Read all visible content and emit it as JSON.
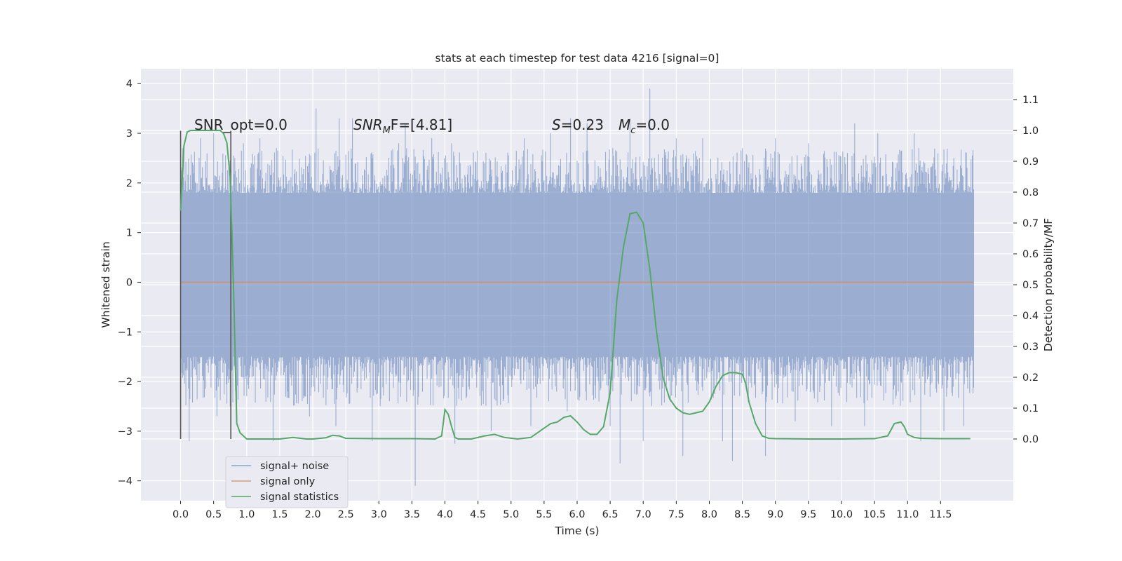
{
  "chart_data": {
    "type": "line",
    "title": "stats at each timestep for test data 4216 [signal=0]",
    "xlabel": "Time (s)",
    "ylabel": "Whitened strain",
    "y2label": "Detection probability/MF",
    "xlim": [
      -0.6,
      12.6
    ],
    "ylim": [
      -4.4,
      4.3
    ],
    "y2lim": [
      -0.2,
      1.2
    ],
    "x_ticks": [
      "0.0",
      "0.5",
      "1.0",
      "1.5",
      "2.0",
      "2.5",
      "3.0",
      "3.5",
      "4.0",
      "4.5",
      "5.0",
      "5.5",
      "6.0",
      "6.5",
      "7.0",
      "7.5",
      "8.0",
      "8.5",
      "9.0",
      "9.5",
      "10.0",
      "10.5",
      "11.0",
      "11.5"
    ],
    "y_ticks": [
      "4",
      "3",
      "2",
      "1",
      "0",
      "−1",
      "−2",
      "−3",
      "−4"
    ],
    "y2_ticks": [
      "1.1",
      "1.0",
      "0.9",
      "0.8",
      "0.7",
      "0.6",
      "0.5",
      "0.4",
      "0.3",
      "0.2",
      "0.1",
      "0.0"
    ],
    "grid": true,
    "legend_position": "lower-left",
    "colors": {
      "noise": "#4c72b0",
      "signal": "#dd8452",
      "stats": "#55a868",
      "background": "#eaeaf2",
      "grid": "#ffffff",
      "vline": "#555555"
    },
    "series": [
      {
        "name": "signal+ noise",
        "color": "#4c72b0",
        "x_range": [
          0.0,
          12.0
        ],
        "bulk_range": [
          -1.5,
          1.8
        ],
        "max_spikes": [
          {
            "x": 0.05,
            "y": 2.4
          },
          {
            "x": 0.3,
            "y": 2.9
          },
          {
            "x": 0.5,
            "y": 3.0
          },
          {
            "x": 0.95,
            "y": 2.8
          },
          {
            "x": 1.2,
            "y": 2.9
          },
          {
            "x": 1.45,
            "y": 2.7
          },
          {
            "x": 2.05,
            "y": 3.5
          },
          {
            "x": 2.4,
            "y": 3.3
          },
          {
            "x": 2.6,
            "y": 3.3
          },
          {
            "x": 2.9,
            "y": 2.5
          },
          {
            "x": 3.3,
            "y": 2.8
          },
          {
            "x": 3.4,
            "y": 3.2
          },
          {
            "x": 3.8,
            "y": 2.9
          },
          {
            "x": 4.1,
            "y": 2.8
          },
          {
            "x": 4.6,
            "y": 2.4
          },
          {
            "x": 5.2,
            "y": 2.9
          },
          {
            "x": 5.6,
            "y": 3.0
          },
          {
            "x": 5.9,
            "y": 3.3
          },
          {
            "x": 6.15,
            "y": 3.2
          },
          {
            "x": 6.8,
            "y": 3.3
          },
          {
            "x": 7.1,
            "y": 3.9
          },
          {
            "x": 7.5,
            "y": 2.9
          },
          {
            "x": 7.9,
            "y": 2.9
          },
          {
            "x": 8.5,
            "y": 2.7
          },
          {
            "x": 9.0,
            "y": 2.9
          },
          {
            "x": 9.5,
            "y": 2.8
          },
          {
            "x": 10.2,
            "y": 3.2
          },
          {
            "x": 10.55,
            "y": 3.0
          },
          {
            "x": 11.1,
            "y": 3.0
          },
          {
            "x": 11.7,
            "y": 2.5
          },
          {
            "x": 11.9,
            "y": 2.3
          }
        ],
        "min_spikes": [
          {
            "x": 0.0,
            "y": -2.5
          },
          {
            "x": 0.13,
            "y": -3.2
          },
          {
            "x": 0.55,
            "y": -2.7
          },
          {
            "x": 0.75,
            "y": -2.5
          },
          {
            "x": 1.4,
            "y": -3.2
          },
          {
            "x": 1.95,
            "y": -2.7
          },
          {
            "x": 2.35,
            "y": -2.9
          },
          {
            "x": 2.9,
            "y": -3.2
          },
          {
            "x": 3.55,
            "y": -4.1
          },
          {
            "x": 4.15,
            "y": -3.25
          },
          {
            "x": 4.7,
            "y": -3.0
          },
          {
            "x": 5.3,
            "y": -2.9
          },
          {
            "x": 5.85,
            "y": -2.6
          },
          {
            "x": 6.5,
            "y": -2.9
          },
          {
            "x": 6.65,
            "y": -3.65
          },
          {
            "x": 7.0,
            "y": -3.2
          },
          {
            "x": 7.6,
            "y": -3.5
          },
          {
            "x": 8.2,
            "y": -3.2
          },
          {
            "x": 8.35,
            "y": -3.6
          },
          {
            "x": 8.85,
            "y": -3.5
          },
          {
            "x": 9.3,
            "y": -2.8
          },
          {
            "x": 9.85,
            "y": -2.9
          },
          {
            "x": 10.35,
            "y": -2.9
          },
          {
            "x": 11.2,
            "y": -3.2
          },
          {
            "x": 11.55,
            "y": -3.0
          },
          {
            "x": 11.85,
            "y": -2.9
          }
        ]
      },
      {
        "name": "signal only",
        "color": "#dd8452",
        "x": [
          0.0,
          12.0
        ],
        "y": [
          0.0,
          0.0
        ]
      },
      {
        "name": "signal statistics",
        "color": "#55a868",
        "axis": "right",
        "x": [
          0.0,
          0.05,
          0.1,
          0.15,
          0.3,
          0.5,
          0.6,
          0.65,
          0.7,
          0.75,
          0.8,
          0.85,
          0.9,
          1.0,
          1.5,
          1.7,
          1.9,
          2.0,
          2.2,
          2.3,
          2.4,
          2.5,
          3.0,
          3.5,
          3.85,
          3.95,
          4.0,
          4.05,
          4.1,
          4.15,
          4.2,
          4.4,
          4.6,
          4.75,
          4.9,
          5.1,
          5.3,
          5.5,
          5.6,
          5.7,
          5.8,
          5.9,
          6.0,
          6.1,
          6.2,
          6.3,
          6.4,
          6.5,
          6.55,
          6.6,
          6.7,
          6.8,
          6.9,
          7.0,
          7.1,
          7.2,
          7.3,
          7.4,
          7.5,
          7.6,
          7.7,
          7.8,
          7.9,
          8.0,
          8.1,
          8.2,
          8.3,
          8.4,
          8.5,
          8.55,
          8.6,
          8.7,
          8.8,
          8.9,
          9.0,
          9.5,
          10.0,
          10.5,
          10.7,
          10.8,
          10.9,
          10.95,
          11.0,
          11.1,
          11.2,
          11.5,
          11.95
        ],
        "y": [
          0.74,
          0.95,
          0.995,
          1.0,
          1.0,
          1.0,
          1.0,
          0.99,
          0.96,
          0.85,
          0.5,
          0.05,
          0.02,
          0.0,
          0.0,
          0.005,
          0.0,
          0.0,
          0.004,
          0.012,
          0.01,
          0.002,
          0.001,
          0.001,
          0.0,
          0.01,
          0.095,
          0.08,
          0.04,
          0.005,
          0.0,
          0.0,
          0.01,
          0.015,
          0.005,
          0.0,
          0.005,
          0.035,
          0.05,
          0.055,
          0.07,
          0.075,
          0.055,
          0.03,
          0.015,
          0.015,
          0.04,
          0.15,
          0.3,
          0.45,
          0.62,
          0.73,
          0.735,
          0.7,
          0.55,
          0.35,
          0.2,
          0.13,
          0.1,
          0.085,
          0.08,
          0.085,
          0.09,
          0.12,
          0.17,
          0.205,
          0.215,
          0.215,
          0.21,
          0.18,
          0.12,
          0.05,
          0.01,
          0.002,
          0.001,
          0.0,
          0.0,
          0.001,
          0.01,
          0.05,
          0.055,
          0.04,
          0.015,
          0.005,
          0.002,
          0.001,
          0.001
        ]
      }
    ],
    "vlines": [
      0.0,
      0.76
    ],
    "annotations": [
      {
        "prefix": "SNR_opt=0.0",
        "sub": "",
        "suffix": ""
      },
      {
        "prefix": "SNR",
        "sub": "M",
        "suffix": "F=[4.81]"
      },
      {
        "prefix": "S",
        "sub": "",
        "suffix": "=0.23"
      },
      {
        "prefix": "M",
        "sub": "c",
        "suffix": "=0.0"
      }
    ]
  }
}
